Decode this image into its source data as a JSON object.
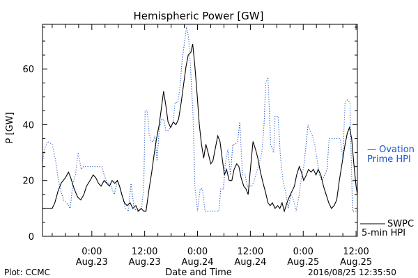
{
  "chart_data": {
    "type": "line",
    "title": "Hemispheric Power [GW]",
    "xlabel": "Date and Time",
    "ylabel": "P [GW]",
    "x_unit": "hours since 2016-08-22 00:00",
    "xlim": [
      12.8,
      84.3
    ],
    "ylim": [
      0,
      76
    ],
    "y_ticks": [
      0,
      20,
      40,
      60
    ],
    "x_ticks": [
      {
        "x": 24,
        "time": "0:00",
        "date": "Aug.23"
      },
      {
        "x": 36,
        "time": "12:00",
        "date": "Aug.23"
      },
      {
        "x": 48,
        "time": "0:00",
        "date": "Aug.24"
      },
      {
        "x": 60,
        "time": "12:00",
        "date": "Aug.24"
      },
      {
        "x": 72,
        "time": "0:00",
        "date": "Aug.25"
      },
      {
        "x": 84,
        "time": "12:00",
        "date": "Aug.25"
      }
    ],
    "grid": false,
    "series": [
      {
        "name": "SWPC 5-min HPI",
        "color": "#000000",
        "style": "solid",
        "points": [
          [
            12.8,
            10
          ],
          [
            15.0,
            10
          ],
          [
            15.6,
            12
          ],
          [
            16.3,
            16
          ],
          [
            17.0,
            19
          ],
          [
            18.0,
            21
          ],
          [
            18.7,
            23
          ],
          [
            19.2,
            21
          ],
          [
            20.0,
            17
          ],
          [
            20.8,
            14
          ],
          [
            21.5,
            13
          ],
          [
            22.2,
            15
          ],
          [
            22.8,
            18
          ],
          [
            23.6,
            20
          ],
          [
            24.3,
            22
          ],
          [
            24.9,
            21
          ],
          [
            25.5,
            19
          ],
          [
            26.1,
            18
          ],
          [
            26.8,
            20
          ],
          [
            27.4,
            19
          ],
          [
            28.0,
            18
          ],
          [
            28.6,
            20
          ],
          [
            29.2,
            19
          ],
          [
            29.8,
            20
          ],
          [
            30.3,
            18
          ],
          [
            30.8,
            15
          ],
          [
            31.4,
            12
          ],
          [
            32.0,
            11
          ],
          [
            32.7,
            12
          ],
          [
            33.3,
            10
          ],
          [
            34.0,
            11
          ],
          [
            34.6,
            9
          ],
          [
            35.2,
            10
          ],
          [
            35.8,
            9
          ],
          [
            36.3,
            9
          ],
          [
            37.0,
            17
          ],
          [
            37.6,
            23
          ],
          [
            38.2,
            30
          ],
          [
            38.7,
            35
          ],
          [
            39.3,
            40
          ],
          [
            39.8,
            46
          ],
          [
            40.3,
            52
          ],
          [
            40.8,
            47
          ],
          [
            41.3,
            41
          ],
          [
            41.9,
            39
          ],
          [
            42.5,
            41
          ],
          [
            43.1,
            40
          ],
          [
            43.7,
            42
          ],
          [
            44.3,
            48
          ],
          [
            44.8,
            54
          ],
          [
            45.4,
            61
          ],
          [
            45.9,
            65
          ],
          [
            46.5,
            66
          ],
          [
            46.9,
            69
          ],
          [
            47.4,
            61
          ],
          [
            47.9,
            51
          ],
          [
            48.4,
            40
          ],
          [
            48.9,
            33
          ],
          [
            49.4,
            28
          ],
          [
            49.9,
            33
          ],
          [
            50.4,
            30
          ],
          [
            51.0,
            26
          ],
          [
            51.5,
            27
          ],
          [
            52.1,
            32
          ],
          [
            52.6,
            36
          ],
          [
            53.1,
            34
          ],
          [
            53.6,
            28
          ],
          [
            54.1,
            22
          ],
          [
            54.6,
            24
          ],
          [
            55.2,
            20
          ],
          [
            55.8,
            20
          ],
          [
            56.3,
            24
          ],
          [
            56.9,
            26
          ],
          [
            57.4,
            25
          ],
          [
            57.9,
            21
          ],
          [
            58.5,
            18
          ],
          [
            59.0,
            17
          ],
          [
            59.5,
            15
          ],
          [
            60.0,
            24
          ],
          [
            60.6,
            34
          ],
          [
            61.2,
            31
          ],
          [
            61.7,
            28
          ],
          [
            62.3,
            23
          ],
          [
            62.9,
            19
          ],
          [
            63.4,
            16
          ],
          [
            64.0,
            12
          ],
          [
            64.5,
            11
          ],
          [
            65.0,
            12
          ],
          [
            65.6,
            10
          ],
          [
            66.2,
            11
          ],
          [
            66.7,
            10
          ],
          [
            67.2,
            12
          ],
          [
            67.7,
            9
          ],
          [
            68.3,
            12
          ],
          [
            68.8,
            14
          ],
          [
            69.4,
            16
          ],
          [
            70.0,
            18
          ],
          [
            70.5,
            22
          ],
          [
            71.1,
            25
          ],
          [
            71.6,
            23
          ],
          [
            72.1,
            20
          ],
          [
            72.7,
            22
          ],
          [
            73.2,
            24
          ],
          [
            73.8,
            23
          ],
          [
            74.3,
            24
          ],
          [
            74.9,
            22
          ],
          [
            75.4,
            24
          ],
          [
            76.0,
            22
          ],
          [
            76.6,
            18
          ],
          [
            77.2,
            15
          ],
          [
            77.8,
            12
          ],
          [
            78.4,
            10
          ],
          [
            79.0,
            11
          ],
          [
            79.6,
            13
          ],
          [
            80.2,
            20
          ],
          [
            80.8,
            26
          ],
          [
            81.4,
            32
          ],
          [
            82.0,
            37
          ],
          [
            82.5,
            39
          ],
          [
            83.0,
            35
          ],
          [
            83.5,
            26
          ],
          [
            84.0,
            18
          ],
          [
            84.3,
            15
          ]
        ]
      },
      {
        "name": "Ovation Prime HPI",
        "color": "#1a55c8",
        "style": "dotted",
        "points": [
          [
            12.8,
            26
          ],
          [
            13.2,
            31
          ],
          [
            14.0,
            34
          ],
          [
            15.0,
            33
          ],
          [
            15.7,
            28
          ],
          [
            16.4,
            20
          ],
          [
            17.0,
            16
          ],
          [
            17.6,
            13
          ],
          [
            18.3,
            12
          ],
          [
            19.1,
            10
          ],
          [
            19.7,
            19
          ],
          [
            20.3,
            22
          ],
          [
            20.9,
            30
          ],
          [
            21.6,
            24
          ],
          [
            22.1,
            25
          ],
          [
            24.5,
            25
          ],
          [
            26.3,
            25
          ],
          [
            26.8,
            22
          ],
          [
            27.5,
            19
          ],
          [
            28.1,
            19
          ],
          [
            28.6,
            17
          ],
          [
            29.1,
            15
          ],
          [
            29.8,
            20
          ],
          [
            30.5,
            17
          ],
          [
            31.0,
            14
          ],
          [
            31.6,
            10
          ],
          [
            32.3,
            9
          ],
          [
            32.9,
            19
          ],
          [
            33.6,
            10
          ],
          [
            34.4,
            9
          ],
          [
            35.3,
            10
          ],
          [
            35.8,
            18
          ],
          [
            36.1,
            45
          ],
          [
            36.6,
            45
          ],
          [
            37.0,
            37
          ],
          [
            37.5,
            34
          ],
          [
            37.9,
            34
          ],
          [
            38.3,
            36
          ],
          [
            38.8,
            27
          ],
          [
            39.3,
            38
          ],
          [
            39.8,
            42
          ],
          [
            40.3,
            42
          ],
          [
            40.8,
            38
          ],
          [
            41.3,
            38
          ],
          [
            41.8,
            39
          ],
          [
            42.5,
            41
          ],
          [
            42.9,
            48
          ],
          [
            43.5,
            48
          ],
          [
            44.0,
            53
          ],
          [
            44.5,
            63
          ],
          [
            45.0,
            69
          ],
          [
            45.5,
            75
          ],
          [
            46.0,
            71
          ],
          [
            46.5,
            58
          ],
          [
            47.0,
            43
          ],
          [
            47.4,
            18
          ],
          [
            48.0,
            9
          ],
          [
            48.6,
            17
          ],
          [
            49.1,
            17
          ],
          [
            49.7,
            9
          ],
          [
            50.5,
            9
          ],
          [
            51.7,
            9
          ],
          [
            52.8,
            9
          ],
          [
            53.3,
            17
          ],
          [
            53.9,
            17
          ],
          [
            54.3,
            26
          ],
          [
            54.9,
            31
          ],
          [
            55.5,
            22
          ],
          [
            56.0,
            33
          ],
          [
            56.6,
            33
          ],
          [
            57.1,
            34
          ],
          [
            57.6,
            41
          ],
          [
            58.2,
            22
          ],
          [
            58.8,
            22
          ],
          [
            59.3,
            18
          ],
          [
            60.3,
            18
          ],
          [
            60.9,
            20
          ],
          [
            61.4,
            23
          ],
          [
            62.0,
            26
          ],
          [
            62.6,
            30
          ],
          [
            63.1,
            40
          ],
          [
            63.5,
            55
          ],
          [
            64.0,
            57
          ],
          [
            64.6,
            33
          ],
          [
            65.3,
            30
          ],
          [
            65.6,
            43
          ],
          [
            66.3,
            43
          ],
          [
            66.8,
            29
          ],
          [
            67.4,
            20
          ],
          [
            68.1,
            15
          ],
          [
            68.6,
            10
          ],
          [
            69.2,
            15
          ],
          [
            69.8,
            13
          ],
          [
            70.4,
            9
          ],
          [
            71.1,
            15
          ],
          [
            71.5,
            20
          ],
          [
            72.1,
            25
          ],
          [
            72.6,
            32
          ],
          [
            73.1,
            40
          ],
          [
            73.5,
            38
          ],
          [
            74.1,
            36
          ],
          [
            74.6,
            33
          ],
          [
            75.1,
            28
          ],
          [
            75.7,
            22
          ],
          [
            76.2,
            20
          ],
          [
            76.9,
            22
          ],
          [
            77.4,
            24
          ],
          [
            77.9,
            35
          ],
          [
            78.5,
            35
          ],
          [
            79.2,
            35
          ],
          [
            79.8,
            35
          ],
          [
            80.4,
            35
          ],
          [
            81.0,
            28
          ],
          [
            81.5,
            48
          ],
          [
            81.9,
            49
          ],
          [
            82.6,
            48
          ],
          [
            83.2,
            9
          ],
          [
            84.3,
            9
          ]
        ]
      }
    ],
    "legend": [
      {
        "label": "— Ovation",
        "color": "#1a55c8"
      },
      {
        "label": "Prime HPI",
        "color": "#1a55c8"
      },
      {
        "label": "SWPC",
        "color": "#000000"
      },
      {
        "label": "5-min HPI",
        "color": "#000000"
      }
    ]
  },
  "footer": {
    "left": "Plot: CCMC",
    "right": "2016/08/25 12:35:50"
  }
}
